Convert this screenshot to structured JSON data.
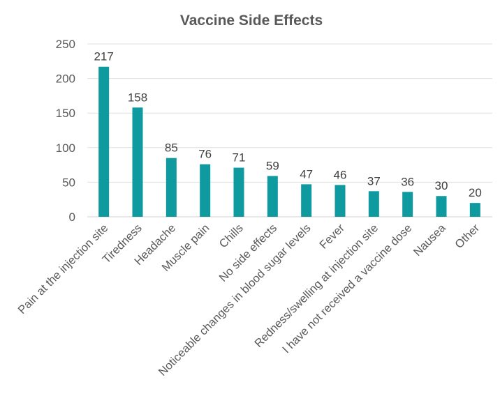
{
  "chart_data": {
    "type": "bar",
    "title": "Vaccine Side Effects",
    "xlabel": "",
    "ylabel": "",
    "ylim": [
      0,
      250
    ],
    "yticks": [
      0,
      50,
      100,
      150,
      200,
      250
    ],
    "grid": true,
    "legend": "none",
    "bar_color": "#0E9A9E",
    "categories": [
      "Pain at the injection site",
      "Tiredness",
      "Headache",
      "Muscle pain",
      "Chills",
      "No side effects",
      "Noticeable changes in blood sugar levels",
      "Fever",
      "Redness/swelling at injection site",
      "I have not received a vaccine dose",
      "Nausea",
      "Other"
    ],
    "values": [
      217,
      158,
      85,
      76,
      71,
      59,
      47,
      46,
      37,
      36,
      30,
      20
    ]
  }
}
